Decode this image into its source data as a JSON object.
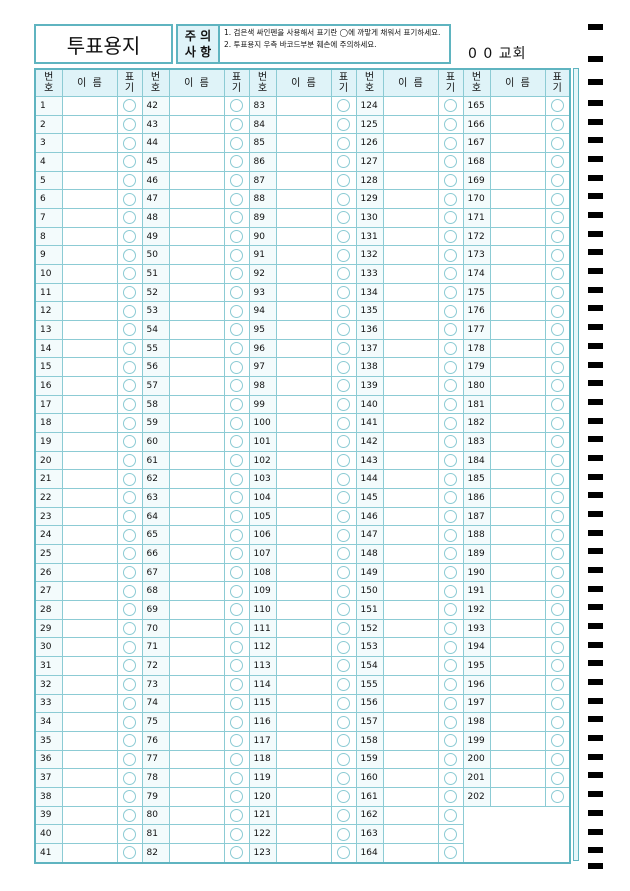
{
  "title": "투표용지",
  "notice": {
    "label_line1": "주 의",
    "label_line2": "사 항",
    "line1": "1. 검은색 싸인펜을 사용해서 표기란 ◯에 까맣게 채워서 표기하세요.",
    "line2": "2. 투표용지 우측 바코드부분 훼손에 주의하세요."
  },
  "church": "0 0 교회",
  "headers": {
    "number": "번\n호",
    "name": "이  름",
    "mark": "표\n기"
  },
  "columns": [
    [
      1,
      2,
      3,
      4,
      5,
      6,
      7,
      8,
      9,
      10,
      11,
      12,
      13,
      14,
      15,
      16,
      17,
      18,
      19,
      20,
      21,
      22,
      23,
      24,
      25,
      26,
      27,
      28,
      29,
      30,
      31,
      32,
      33,
      34,
      35,
      36,
      37,
      38,
      39,
      40,
      41
    ],
    [
      42,
      43,
      44,
      45,
      46,
      47,
      48,
      49,
      50,
      51,
      52,
      53,
      54,
      55,
      56,
      57,
      58,
      59,
      60,
      61,
      62,
      63,
      64,
      65,
      66,
      67,
      68,
      69,
      70,
      71,
      72,
      73,
      74,
      75,
      76,
      77,
      78,
      79,
      80,
      81,
      82
    ],
    [
      83,
      84,
      85,
      86,
      87,
      88,
      89,
      90,
      91,
      92,
      93,
      94,
      95,
      96,
      97,
      98,
      99,
      100,
      101,
      102,
      103,
      104,
      105,
      106,
      107,
      108,
      109,
      110,
      111,
      112,
      113,
      114,
      115,
      116,
      117,
      118,
      119,
      120,
      121,
      122,
      123
    ],
    [
      124,
      125,
      126,
      127,
      128,
      129,
      130,
      131,
      132,
      133,
      134,
      135,
      136,
      137,
      138,
      139,
      140,
      141,
      142,
      143,
      144,
      145,
      146,
      147,
      148,
      149,
      150,
      151,
      152,
      153,
      154,
      155,
      156,
      157,
      158,
      159,
      160,
      161,
      162,
      163,
      164
    ],
    [
      165,
      166,
      167,
      168,
      169,
      170,
      171,
      172,
      173,
      174,
      175,
      176,
      177,
      178,
      179,
      180,
      181,
      182,
      183,
      184,
      185,
      186,
      187,
      188,
      189,
      190,
      191,
      192,
      193,
      194,
      195,
      196,
      197,
      198,
      199,
      200,
      201,
      202
    ]
  ],
  "colors": {
    "border": "#5fb4c0",
    "header_bg": "#dff3f8"
  }
}
